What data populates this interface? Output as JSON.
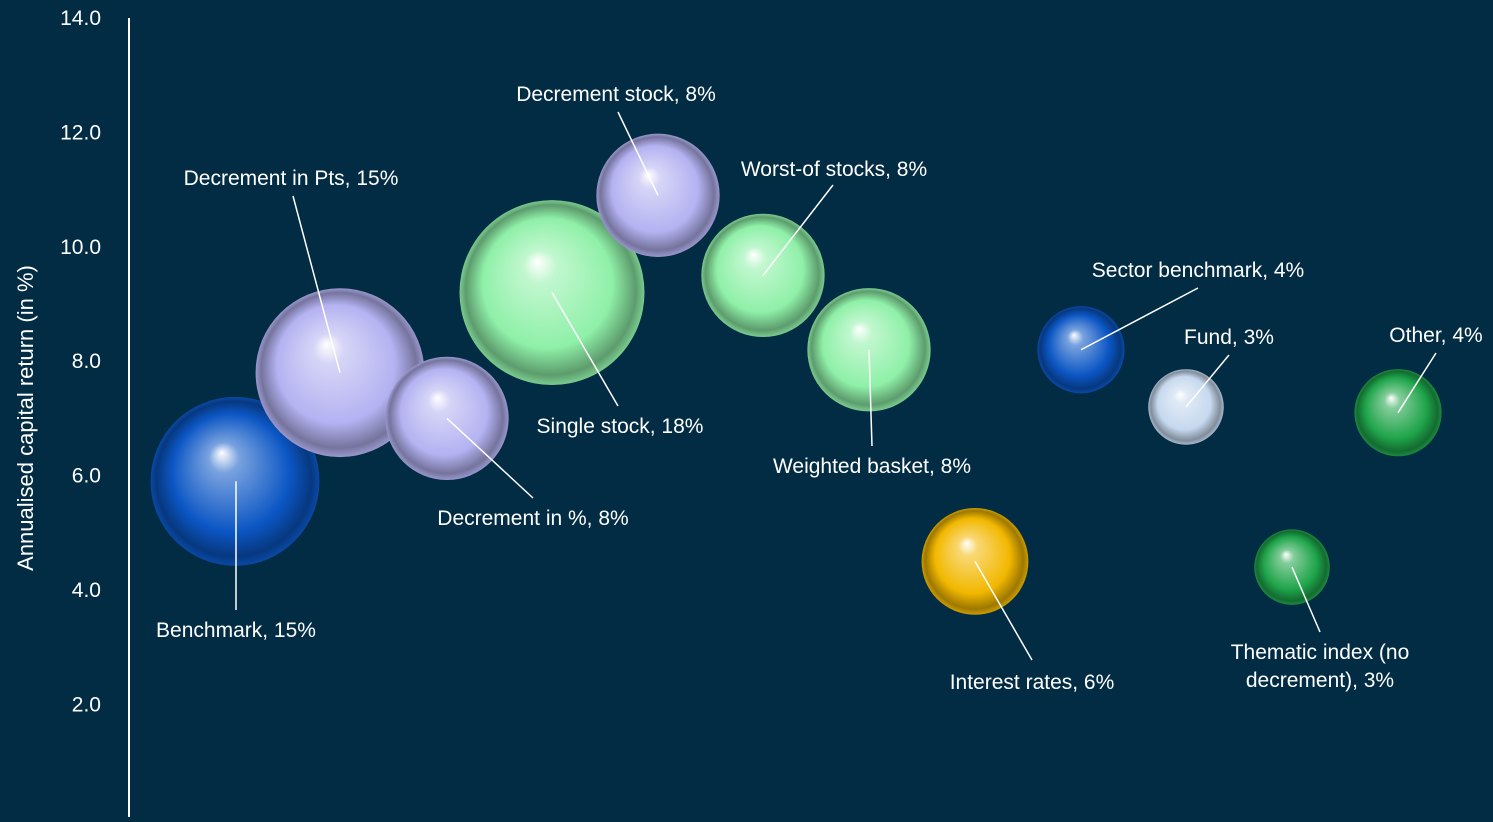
{
  "chart_data": {
    "type": "bubble",
    "title": "",
    "xlabel": "",
    "ylabel": "Annualised capital return (in %)",
    "ylim": [
      0,
      14
    ],
    "yticks": [
      "14.0",
      "12.0",
      "10.0",
      "8.0",
      "6.0",
      "4.0",
      "2.0"
    ],
    "grid": false,
    "legend": "none",
    "points": [
      {
        "label": "Benchmark, 15%",
        "share": 15,
        "y": 5.9,
        "color": "blue"
      },
      {
        "label": "Decrement in Pts, 15%",
        "share": 15,
        "y": 7.8,
        "color": "lavender"
      },
      {
        "label": "Decrement in %, 8%",
        "share": 8,
        "y": 7.0,
        "color": "lavender"
      },
      {
        "label": "Single stock, 18%",
        "share": 18,
        "y": 9.2,
        "color": "mint"
      },
      {
        "label": "Decrement stock, 8%",
        "share": 8,
        "y": 10.9,
        "color": "lavender"
      },
      {
        "label": "Worst-of stocks, 8%",
        "share": 8,
        "y": 9.5,
        "color": "mint"
      },
      {
        "label": "Weighted basket, 8%",
        "share": 8,
        "y": 8.2,
        "color": "mint"
      },
      {
        "label": "Interest rates, 6%",
        "share": 6,
        "y": 4.5,
        "color": "gold"
      },
      {
        "label": "Sector benchmark, 4%",
        "share": 4,
        "y": 8.2,
        "color": "blue"
      },
      {
        "label": "Fund, 3%",
        "share": 3,
        "y": 7.2,
        "color": "ice"
      },
      {
        "label": "Thematic index (no decrement), 3%",
        "share": 3,
        "y": 4.4,
        "color": "green"
      },
      {
        "label": "Other, 4%",
        "share": 4,
        "y": 7.1,
        "color": "green"
      }
    ]
  },
  "colors": {
    "background": "#022c43",
    "axis": "#ffffff",
    "text": "#ffffff",
    "blue": "#0b56c4",
    "lavender": "#b4b2f1",
    "mint": "#8ff0a8",
    "gold": "#f2b800",
    "ice": "#c6d9ef",
    "green": "#1fa44a"
  }
}
